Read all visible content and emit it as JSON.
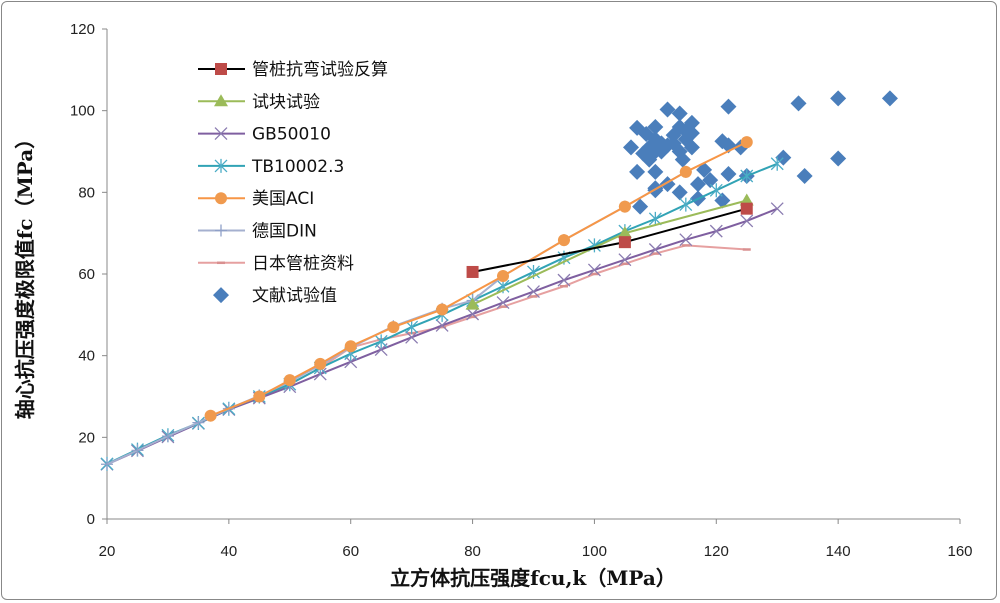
{
  "chart_data": {
    "type": "line",
    "title": "",
    "xlabel": "立方体抗压强度fcu,k（MPa）",
    "ylabel": "轴心抗压强度极限值fc（MPa）",
    "xlim": [
      20,
      160
    ],
    "ylim": [
      0,
      120
    ],
    "xticks": [
      20,
      40,
      60,
      80,
      100,
      120,
      140,
      160
    ],
    "yticks": [
      0,
      20,
      40,
      60,
      80,
      100,
      120
    ],
    "grid": false,
    "legend_position": "top-left",
    "series": [
      {
        "name": "管桩抗弯试验反算",
        "color": "#000000",
        "marker": "square",
        "marker_color": "#be4b48",
        "x": [
          80,
          105,
          125
        ],
        "y": [
          60.5,
          67.8,
          76
        ]
      },
      {
        "name": "试块试验",
        "color": "#9bbb59",
        "marker": "triangle",
        "marker_color": "#9bbb59",
        "x": [
          80,
          105,
          125
        ],
        "y": [
          52.5,
          70,
          78
        ]
      },
      {
        "name": "GB50010",
        "color": "#7f5fa0",
        "marker": "x",
        "marker_color": "#8a7bb0",
        "x": [
          20,
          25,
          30,
          35,
          40,
          45,
          50,
          55,
          60,
          65,
          70,
          75,
          80,
          85,
          90,
          95,
          100,
          105,
          110,
          115,
          120,
          125,
          130
        ],
        "y": [
          13.4,
          16.7,
          20.1,
          23.4,
          26.8,
          29.6,
          32.4,
          35.5,
          38.5,
          41.5,
          44.5,
          47.4,
          50.2,
          53,
          55.7,
          58.5,
          61,
          63.5,
          66,
          68.4,
          70.5,
          73,
          76
        ]
      },
      {
        "name": "TB10002.3",
        "color": "#31a3b5",
        "marker": "asterisk",
        "marker_color": "#4bacc6",
        "x": [
          20,
          25,
          30,
          35,
          40,
          45,
          50,
          55,
          60,
          65,
          70,
          75,
          80,
          85,
          90,
          95,
          100,
          105,
          110,
          115,
          120,
          125,
          130
        ],
        "y": [
          13.5,
          17,
          20.5,
          23.5,
          27,
          30,
          33,
          37,
          40.5,
          43.5,
          47,
          50,
          53.5,
          57,
          60.5,
          64,
          67,
          70.5,
          73.5,
          77,
          80.5,
          84,
          87
        ]
      },
      {
        "name": "美国ACI",
        "color": "#f79646",
        "marker": "circle",
        "marker_color": "#f09a4e",
        "x": [
          37,
          45,
          50,
          55,
          60,
          67,
          75,
          85,
          95,
          105,
          115,
          125
        ],
        "y": [
          25.3,
          30,
          34,
          38,
          42.3,
          47,
          51.3,
          59.5,
          68.3,
          76.5,
          85,
          92.3
        ]
      },
      {
        "name": "德国DIN",
        "color": "#a5b0cf",
        "marker": "plus",
        "marker_color": "#8fa0c8",
        "x": [
          20,
          25,
          30,
          35,
          40,
          45,
          50,
          55,
          60,
          67,
          75,
          80,
          85,
          95,
          105,
          115
        ],
        "y": [
          13.4,
          16.8,
          20.3,
          23.6,
          27,
          30.2,
          33.6,
          37.7,
          42,
          47.2,
          51.5,
          53.5,
          59.5,
          68.3,
          76.5,
          85
        ]
      },
      {
        "name": "日本管桩资料",
        "color": "#e6a0a0",
        "marker": "dash",
        "marker_color": "#d99090",
        "x": [
          40,
          45,
          50,
          55,
          60,
          65,
          70,
          75,
          80,
          85,
          90,
          95,
          100,
          105,
          110,
          115,
          125
        ],
        "y": [
          27,
          29.6,
          33,
          37,
          42,
          44,
          45.5,
          47,
          49.5,
          52,
          54.5,
          57,
          60,
          62.5,
          65,
          67,
          66
        ]
      },
      {
        "name": "文献试验值",
        "color": "#4a7ebb",
        "marker": "diamond",
        "line": false,
        "marker_color": "#4a7ebb",
        "x": [
          148.5,
          140,
          133.5,
          122,
          112,
          114,
          110,
          107,
          114,
          115,
          116,
          113,
          108.5,
          110,
          111,
          112,
          109,
          106,
          108,
          110,
          114,
          116,
          114.5,
          121,
          122,
          124,
          131,
          140,
          107,
          110,
          118,
          122,
          125,
          134.5,
          117,
          119,
          110,
          110,
          114,
          112,
          107.5,
          121,
          117,
          109,
          113,
          115,
          111,
          116
        ],
        "y": [
          103,
          103,
          101.8,
          101,
          100.3,
          99.3,
          96,
          95.8,
          96,
          95,
          94.5,
          94,
          94.3,
          93,
          92,
          91.5,
          91,
          91,
          89.5,
          90,
          90,
          91,
          88,
          92.5,
          91.5,
          91,
          88.5,
          88.3,
          85,
          85,
          85.5,
          84.5,
          84,
          84,
          82,
          83,
          81,
          80.5,
          80,
          82,
          76.5,
          78,
          78.5,
          88,
          92,
          93,
          90,
          97
        ]
      }
    ]
  }
}
